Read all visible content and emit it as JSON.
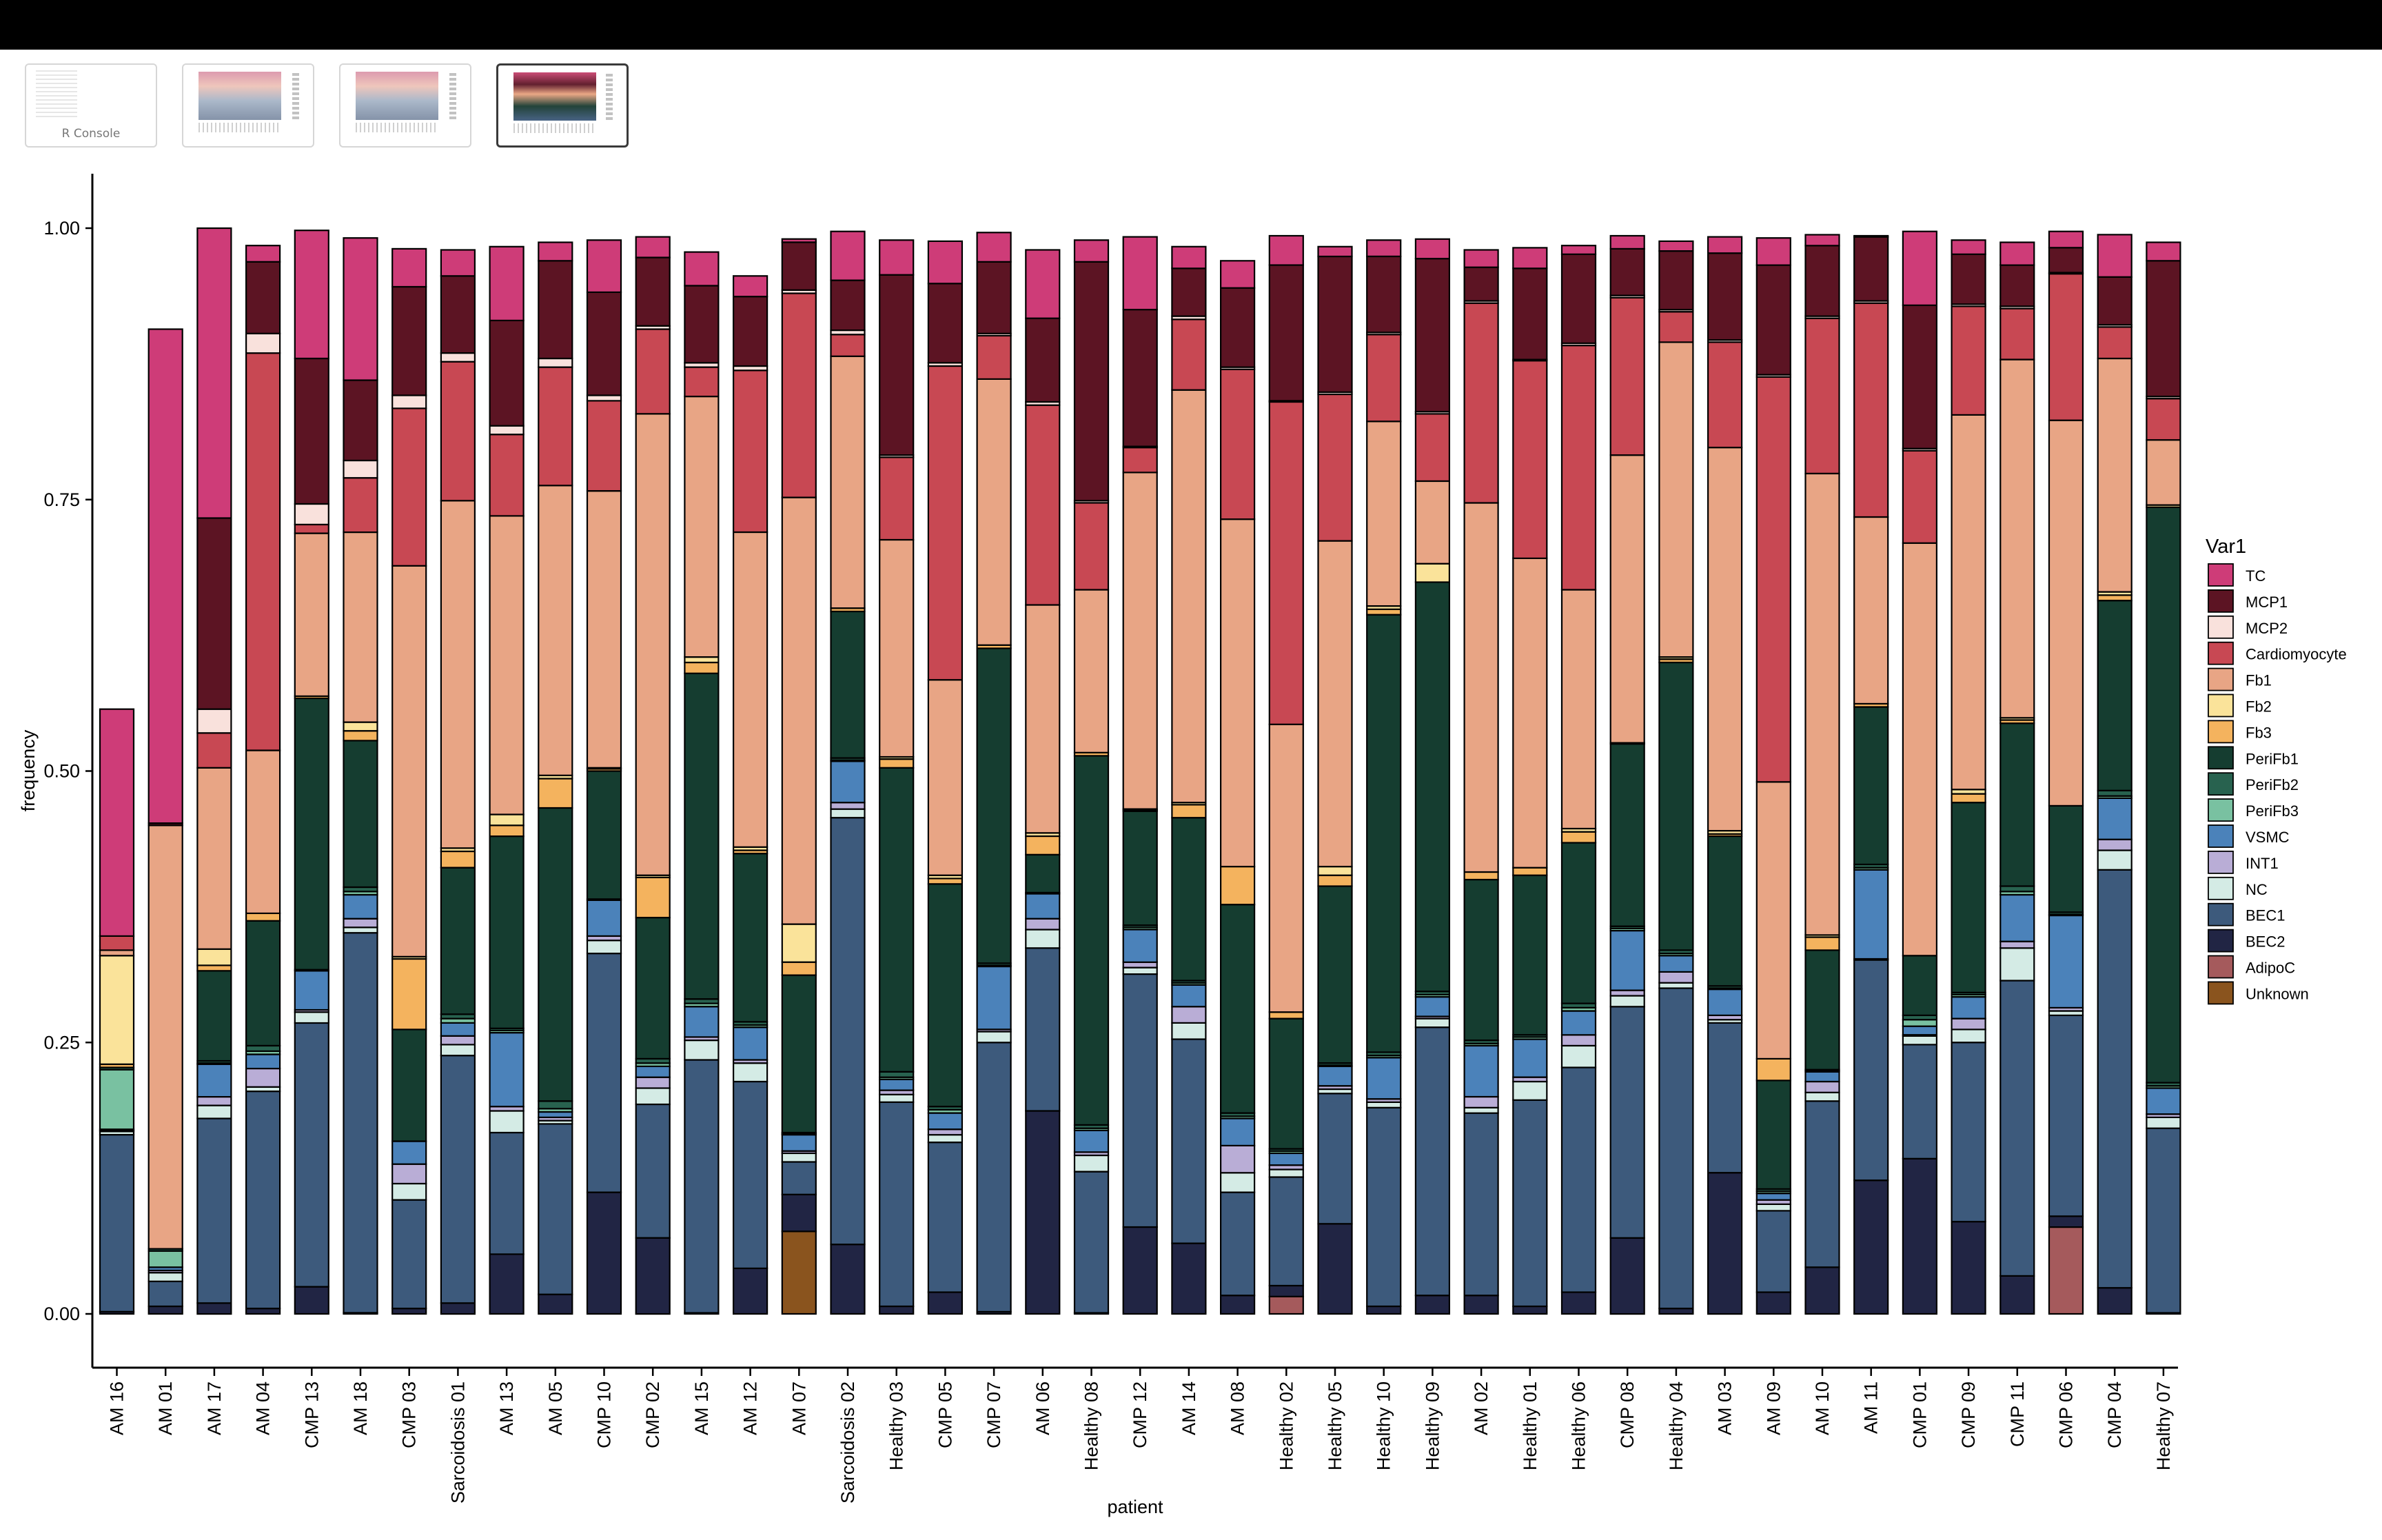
{
  "window": {
    "thumbnails": [
      {
        "label": "R Console",
        "kind": "console",
        "active": false
      },
      {
        "label": "",
        "kind": "plot",
        "active": false
      },
      {
        "label": "",
        "kind": "plot",
        "active": false
      },
      {
        "label": "",
        "kind": "plot",
        "active": true
      }
    ]
  },
  "chart_data": {
    "type": "bar",
    "stacked": true,
    "xlabel": "patient",
    "ylabel": "frequency",
    "ylim": [
      0,
      1
    ],
    "yticks": [
      "0.00",
      "0.25",
      "0.50",
      "0.75",
      "1.00"
    ],
    "legend_title": "Var1",
    "legend_position": "right",
    "grid": false,
    "categories": [
      "AM 16",
      "AM 01",
      "AM 17",
      "AM 04",
      "CMP 13",
      "AM 18",
      "CMP 03",
      "Sarcoidosis 01",
      "AM 13",
      "AM 05",
      "CMP 10",
      "CMP 02",
      "AM 15",
      "AM 12",
      "AM 07",
      "Sarcoidosis 02",
      "Healthy 03",
      "CMP 05",
      "CMP 07",
      "AM 06",
      "Healthy 08",
      "CMP 12",
      "AM 14",
      "AM 08",
      "Healthy 02",
      "Healthy 05",
      "Healthy 10",
      "Healthy 09",
      "AM 02",
      "Healthy 01",
      "Healthy 06",
      "CMP 08",
      "Healthy 04",
      "AM 03",
      "AM 09",
      "AM 10",
      "AM 11",
      "CMP 01",
      "CMP 09",
      "CMP 11",
      "CMP 06",
      "CMP 04",
      "Healthy 07"
    ],
    "stack_order_bottom_to_top": [
      "Unknown",
      "AdipoC",
      "BEC2",
      "BEC1",
      "NC",
      "INT1",
      "VSMC",
      "PeriFb3",
      "PeriFb2",
      "PeriFb1",
      "Fb3",
      "Fb2",
      "Fb1",
      "Cardiomyocyte",
      "MCP2",
      "MCP1",
      "TC"
    ],
    "series": [
      {
        "name": "TC",
        "color": "#CE3C78",
        "values": [
          0.209,
          0.455,
          0.267,
          0.015,
          0.118,
          0.131,
          0.035,
          0.024,
          0.068,
          0.017,
          0.048,
          0.019,
          0.031,
          0.019,
          0.003,
          0.045,
          0.032,
          0.039,
          0.027,
          0.063,
          0.02,
          0.067,
          0.02,
          0.025,
          0.027,
          0.009,
          0.015,
          0.018,
          0.016,
          0.019,
          0.008,
          0.012,
          0.009,
          0.015,
          0.025,
          0.01,
          0.001,
          0.068,
          0.013,
          0.021,
          0.015,
          0.039,
          0.017
        ]
      },
      {
        "name": "MCP1",
        "color": "#5C1423",
        "values": [
          0,
          0.002,
          0.176,
          0.066,
          0.134,
          0.074,
          0.1,
          0.071,
          0.097,
          0.09,
          0.095,
          0.063,
          0.071,
          0.064,
          0.044,
          0.046,
          0.166,
          0.073,
          0.066,
          0.077,
          0.22,
          0.126,
          0.044,
          0.073,
          0.125,
          0.125,
          0.07,
          0.141,
          0.031,
          0.084,
          0.082,
          0.043,
          0.054,
          0.08,
          0.101,
          0.065,
          0.059,
          0.132,
          0.046,
          0.038,
          0.023,
          0.044,
          0.125
        ]
      },
      {
        "name": "MCP2",
        "color": "#F9E1DC",
        "values": [
          0,
          0,
          0.022,
          0.018,
          0.019,
          0.016,
          0.012,
          0.008,
          0.008,
          0.008,
          0.005,
          0.003,
          0.004,
          0.004,
          0.003,
          0.004,
          0.002,
          0.003,
          0.002,
          0.003,
          0.002,
          0.001,
          0.003,
          0.002,
          0.001,
          0.002,
          0.002,
          0.002,
          0.002,
          0.001,
          0.002,
          0.002,
          0.002,
          0.002,
          0.002,
          0.002,
          0.002,
          0.002,
          0.002,
          0.002,
          0.001,
          0.002,
          0.002
        ]
      },
      {
        "name": "Cardiomyocyte",
        "color": "#C84853",
        "values": [
          0.013,
          0,
          0.032,
          0.366,
          0.008,
          0.05,
          0.145,
          0.128,
          0.075,
          0.109,
          0.083,
          0.078,
          0.027,
          0.149,
          0.188,
          0.02,
          0.076,
          0.289,
          0.04,
          0.184,
          0.08,
          0.023,
          0.065,
          0.138,
          0.297,
          0.135,
          0.08,
          0.062,
          0.184,
          0.182,
          0.225,
          0.145,
          0.028,
          0.097,
          0.373,
          0.143,
          0.197,
          0.085,
          0.1,
          0.047,
          0.135,
          0.029,
          0.038
        ]
      },
      {
        "name": "Fb1",
        "color": "#E8A585",
        "values": [
          0.005,
          0.39,
          0.167,
          0.15,
          0.15,
          0.175,
          0.36,
          0.32,
          0.275,
          0.267,
          0.255,
          0.425,
          0.24,
          0.29,
          0.393,
          0.232,
          0.2,
          0.18,
          0.245,
          0.21,
          0.15,
          0.31,
          0.38,
          0.32,
          0.265,
          0.3,
          0.17,
          0.076,
          0.34,
          0.285,
          0.22,
          0.265,
          0.29,
          0.353,
          0.255,
          0.425,
          0.172,
          0.38,
          0.345,
          0.33,
          0.355,
          0.215,
          0.06
        ]
      },
      {
        "name": "Fb2",
        "color": "#FAE39A",
        "values": [
          0.1,
          0,
          0.015,
          0,
          0,
          0.008,
          0.002,
          0.003,
          0.01,
          0.003,
          0.001,
          0.002,
          0.005,
          0.003,
          0.035,
          0,
          0.002,
          0.003,
          0,
          0.003,
          0,
          0.001,
          0.002,
          0,
          0,
          0.008,
          0.003,
          0.017,
          0,
          0,
          0.003,
          0,
          0.002,
          0.003,
          0,
          0.002,
          0,
          0,
          0.004,
          0.002,
          0,
          0.003,
          0.002
        ]
      },
      {
        "name": "Fb3",
        "color": "#F4B35E",
        "values": [
          0.003,
          0,
          0.005,
          0.007,
          0.002,
          0.009,
          0.065,
          0.015,
          0.01,
          0.027,
          0.002,
          0.037,
          0.01,
          0.003,
          0.012,
          0.003,
          0.008,
          0.005,
          0.003,
          0.017,
          0.003,
          0.001,
          0.012,
          0.035,
          0.006,
          0.01,
          0.005,
          0,
          0.007,
          0.007,
          0.01,
          0.001,
          0.003,
          0.002,
          0.02,
          0.012,
          0.003,
          0,
          0.008,
          0.003,
          0,
          0.005,
          0
        ]
      },
      {
        "name": "PeriFb1",
        "color": "#153D30",
        "values": [
          0,
          0,
          0.083,
          0.115,
          0.25,
          0.135,
          0.103,
          0.135,
          0.177,
          0.27,
          0.118,
          0.13,
          0.3,
          0.155,
          0.145,
          0.135,
          0.28,
          0.205,
          0.29,
          0.035,
          0.34,
          0.105,
          0.15,
          0.192,
          0.12,
          0.163,
          0.403,
          0.377,
          0.148,
          0.147,
          0.148,
          0.168,
          0.265,
          0.138,
          0.1,
          0.11,
          0.145,
          0.055,
          0.175,
          0.15,
          0.098,
          0.175,
          0.53
        ]
      },
      {
        "name": "PeriFb2",
        "color": "#28624F",
        "values": [
          0.002,
          0.002,
          0.002,
          0.005,
          0,
          0.004,
          0,
          0.004,
          0.002,
          0.007,
          0,
          0.004,
          0.004,
          0.003,
          0.001,
          0.002,
          0.005,
          0.003,
          0.002,
          0,
          0.003,
          0.002,
          0.002,
          0.003,
          0.002,
          0.002,
          0.003,
          0.003,
          0.003,
          0.002,
          0.004,
          0.002,
          0.003,
          0.002,
          0.002,
          0.001,
          0.003,
          0.004,
          0.002,
          0.005,
          0.002,
          0.005,
          0.003
        ]
      },
      {
        "name": "PeriFb3",
        "color": "#79C1A1",
        "values": [
          0.055,
          0.015,
          0.001,
          0.003,
          0.001,
          0.003,
          0,
          0.004,
          0.002,
          0.003,
          0.001,
          0.003,
          0.003,
          0.002,
          0.001,
          0.001,
          0.002,
          0.003,
          0.001,
          0.001,
          0.002,
          0.002,
          0.002,
          0.002,
          0.002,
          0.001,
          0.002,
          0.002,
          0.002,
          0.002,
          0.003,
          0.002,
          0.002,
          0.001,
          0.002,
          0.001,
          0.002,
          0.006,
          0.002,
          0.003,
          0.001,
          0.002,
          0.002
        ]
      },
      {
        "name": "VSMC",
        "color": "#4B82BA",
        "values": [
          0.001,
          0.003,
          0.03,
          0.013,
          0.036,
          0.022,
          0.021,
          0.012,
          0.068,
          0.005,
          0.033,
          0.01,
          0.028,
          0.03,
          0.015,
          0.038,
          0.01,
          0.015,
          0.058,
          0.023,
          0.02,
          0.03,
          0.02,
          0.025,
          0.011,
          0.018,
          0.038,
          0.018,
          0.047,
          0.035,
          0.022,
          0.055,
          0.015,
          0.024,
          0.006,
          0.009,
          0.082,
          0.008,
          0.02,
          0.043,
          0.085,
          0.038,
          0.024
        ]
      },
      {
        "name": "INT1",
        "color": "#B9ADD6",
        "values": [
          0.001,
          0.002,
          0.008,
          0.017,
          0.002,
          0.008,
          0.018,
          0.008,
          0.004,
          0.003,
          0.004,
          0.01,
          0.003,
          0.003,
          0.002,
          0.006,
          0.004,
          0.005,
          0.002,
          0.01,
          0.003,
          0.005,
          0.015,
          0.025,
          0.004,
          0.003,
          0.003,
          0.002,
          0.01,
          0.004,
          0.01,
          0.005,
          0.01,
          0.004,
          0.004,
          0.01,
          0.001,
          0.001,
          0.01,
          0.006,
          0.003,
          0.01,
          0.003
        ]
      },
      {
        "name": "NC",
        "color": "#D4EBE5",
        "values": [
          0.003,
          0.008,
          0.012,
          0.004,
          0.01,
          0.005,
          0.015,
          0.01,
          0.02,
          0.003,
          0.012,
          0.015,
          0.018,
          0.017,
          0.008,
          0.008,
          0.007,
          0.007,
          0.01,
          0.017,
          0.015,
          0.006,
          0.015,
          0.018,
          0.007,
          0.004,
          0.005,
          0.008,
          0.005,
          0.017,
          0.02,
          0.01,
          0.005,
          0.003,
          0.006,
          0.008,
          0,
          0.008,
          0.012,
          0.03,
          0.004,
          0.018,
          0.01
        ]
      },
      {
        "name": "BEC1",
        "color": "#3D5A7C",
        "values": [
          0.163,
          0.023,
          0.17,
          0.2,
          0.243,
          0.35,
          0.1,
          0.228,
          0.112,
          0.157,
          0.22,
          0.123,
          0.233,
          0.172,
          0.03,
          0.393,
          0.188,
          0.138,
          0.248,
          0.15,
          0.13,
          0.233,
          0.188,
          0.095,
          0.1,
          0.12,
          0.183,
          0.247,
          0.168,
          0.19,
          0.207,
          0.213,
          0.295,
          0.138,
          0.075,
          0.153,
          0.203,
          0.105,
          0.165,
          0.272,
          0.185,
          0.385,
          0.17
        ]
      },
      {
        "name": "BEC2",
        "color": "#212544",
        "values": [
          0.002,
          0.007,
          0.01,
          0.005,
          0.025,
          0.001,
          0.005,
          0.01,
          0.055,
          0.018,
          0.112,
          0.07,
          0.001,
          0.042,
          0.034,
          0.064,
          0.007,
          0.02,
          0.002,
          0.187,
          0.001,
          0.08,
          0.065,
          0.017,
          0.01,
          0.083,
          0.007,
          0.017,
          0.017,
          0.007,
          0.02,
          0.07,
          0.005,
          0.13,
          0.02,
          0.043,
          0.123,
          0.143,
          0.085,
          0.035,
          0.01,
          0.024,
          0.001
        ]
      },
      {
        "name": "AdipoC",
        "color": "#A55A5C",
        "values": [
          0,
          0,
          0,
          0,
          0,
          0,
          0,
          0,
          0,
          0,
          0,
          0,
          0,
          0,
          0,
          0,
          0,
          0,
          0,
          0,
          0,
          0,
          0,
          0,
          0.016,
          0,
          0,
          0,
          0,
          0,
          0,
          0,
          0,
          0,
          0,
          0,
          0,
          0,
          0,
          0,
          0.08,
          0,
          0
        ]
      },
      {
        "name": "Unknown",
        "color": "#8A541E",
        "values": [
          0,
          0,
          0,
          0,
          0,
          0,
          0,
          0,
          0,
          0,
          0,
          0,
          0,
          0,
          0.076,
          0,
          0,
          0,
          0,
          0,
          0,
          0,
          0,
          0,
          0,
          0,
          0,
          0,
          0,
          0,
          0,
          0,
          0,
          0,
          0,
          0,
          0,
          0,
          0,
          0,
          0,
          0,
          0
        ]
      }
    ]
  }
}
